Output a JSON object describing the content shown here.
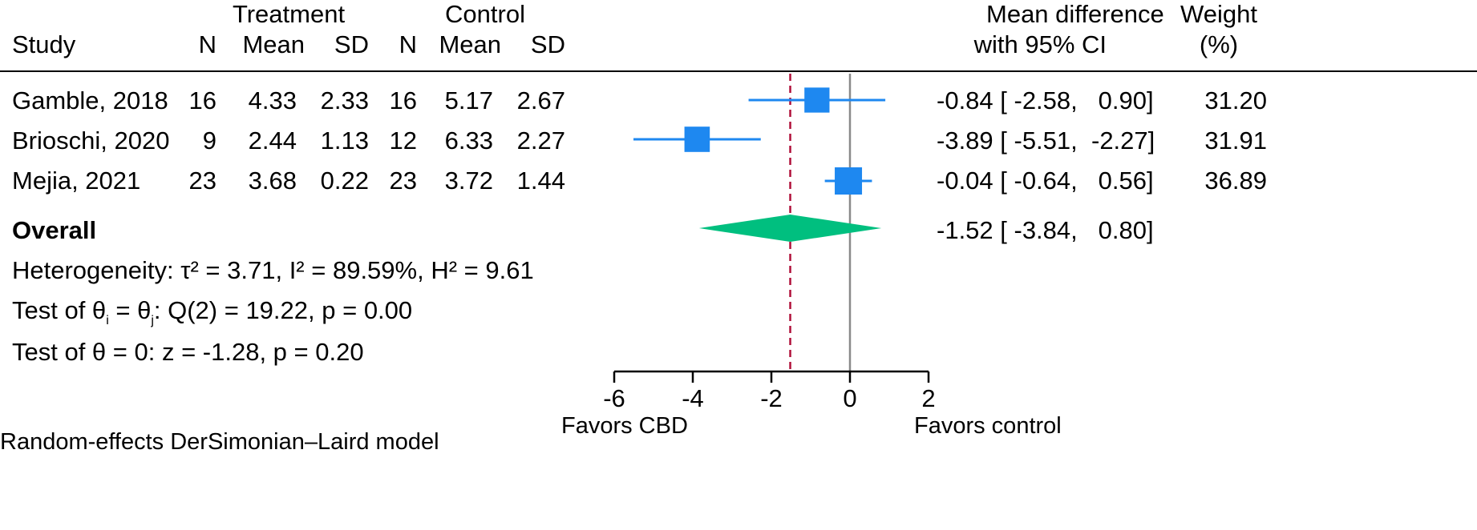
{
  "chart_data": {
    "type": "forest",
    "header": {
      "group1": "Treatment",
      "group2": "Control",
      "study": "Study",
      "n": "N",
      "mean": "Mean",
      "sd": "SD",
      "effect_line1": "Mean difference",
      "effect_line2": "with 95% CI",
      "weight_line1": "Weight",
      "weight_line2": "(%)"
    },
    "studies": [
      {
        "name": "Gamble, 2018",
        "t_n": "16",
        "t_mean": "4.33",
        "t_sd": "2.33",
        "c_n": "16",
        "c_mean": "5.17",
        "c_sd": "2.67",
        "md": -0.84,
        "lo": -2.58,
        "hi": 0.9,
        "ci_text": "-0.84 [ -2.58,   0.90]",
        "weight": 31.2,
        "weight_text": "31.20"
      },
      {
        "name": "Brioschi, 2020",
        "t_n": "9",
        "t_mean": "2.44",
        "t_sd": "1.13",
        "c_n": "12",
        "c_mean": "6.33",
        "c_sd": "2.27",
        "md": -3.89,
        "lo": -5.51,
        "hi": -2.27,
        "ci_text": "-3.89 [ -5.51,  -2.27]",
        "weight": 31.91,
        "weight_text": "31.91"
      },
      {
        "name": "Mejia, 2021",
        "t_n": "23",
        "t_mean": "3.68",
        "t_sd": "0.22",
        "c_n": "23",
        "c_mean": "3.72",
        "c_sd": "1.44",
        "md": -0.04,
        "lo": -0.64,
        "hi": 0.56,
        "ci_text": "-0.04 [ -0.64,   0.56]",
        "weight": 36.89,
        "weight_text": "36.89"
      }
    ],
    "overall": {
      "label": "Overall",
      "md": -1.52,
      "lo": -3.84,
      "hi": 0.8,
      "ci_text": "-1.52 [ -3.84,   0.80]"
    },
    "stats": {
      "heterogeneity": "Heterogeneity: τ² = 3.71, I² = 89.59%, H² = 9.61",
      "test_prefix": "Test of θ",
      "sub_i": "i",
      "eq": " = θ",
      "sub_j": "j",
      "test_rest": ": Q(2) = 19.22, p = 0.00",
      "test_theta": "Test of θ = 0: z = -1.28, p = 0.20"
    },
    "x_axis": {
      "range": [
        -6,
        2
      ],
      "ticks": [
        -6,
        -4,
        -2,
        0,
        2
      ],
      "tick_labels": [
        "-6",
        "-4",
        "-2",
        "0",
        "2"
      ],
      "label_left": "Favors CBD",
      "label_right": "Favors control"
    },
    "reference_line": 0,
    "overall_line": -1.52,
    "model_note": "Random-effects DerSimonian–Laird model",
    "colors": {
      "study_marker": "#1e88f0",
      "diamond": "#00bf7f",
      "overall_line": "#b0103a",
      "zero_line": "#8a8a8a"
    }
  }
}
